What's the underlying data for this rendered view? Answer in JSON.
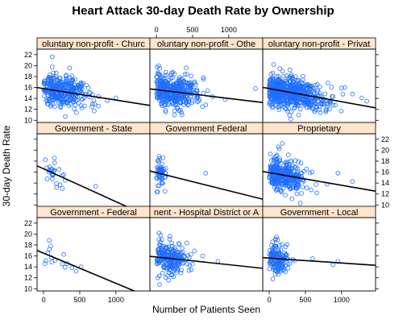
{
  "chart_data": {
    "type": "scatter",
    "title": "Heart Attack 30-day Death Rate by Ownership",
    "xlabel": "Number of Patients Seen",
    "ylabel": "30-day Death Rate",
    "xlim": [
      -90,
      1470
    ],
    "ylim": [
      9.6,
      23
    ],
    "x_ticks": [
      0,
      500,
      1000
    ],
    "y_ticks": [
      10,
      12,
      14,
      16,
      18,
      20,
      22
    ],
    "grid": false,
    "layout": {
      "columns": 3,
      "rows": 3
    },
    "colors": {
      "points": "#1f6fff",
      "strip": "#ffe5cc",
      "line": "#000000",
      "frame": "#000000"
    },
    "panels": [
      {
        "name": "Voluntary non-profit - Church",
        "label": "oluntary non-profit - Churc",
        "row": 1,
        "col": 1,
        "fit": {
          "intercept": 15.8,
          "slope": -0.0021
        },
        "points": {
          "count": 340,
          "x_mean": 250,
          "x_sd": 170,
          "x_max": 1200,
          "y_sd": 1.35,
          "seed": 11,
          "extra": [
            [
              120,
              21.6
            ],
            [
              1000,
              14.1
            ],
            [
              880,
              13.6
            ],
            [
              760,
              12.6
            ],
            [
              700,
              11.7
            ],
            [
              300,
              10.7
            ],
            [
              620,
              15.9
            ]
          ]
        }
      },
      {
        "name": "Voluntary non-profit - Other",
        "label": "oluntary non-profit - Othe",
        "row": 1,
        "col": 2,
        "fit": {
          "intercept": 15.6,
          "slope": -0.0016
        },
        "points": {
          "count": 420,
          "x_mean": 220,
          "x_sd": 170,
          "x_max": 1450,
          "y_sd": 1.4,
          "seed": 23,
          "extra": [
            [
              1370,
              15.8
            ],
            [
              650,
              17.8
            ],
            [
              30,
              20.0
            ],
            [
              250,
              11.0
            ],
            [
              950,
              13.8
            ]
          ]
        }
      },
      {
        "name": "Voluntary non-profit - Private",
        "label": "oluntary non-profit - Privat",
        "row": 1,
        "col": 3,
        "fit": {
          "intercept": 15.8,
          "slope": -0.0024
        },
        "points": {
          "count": 640,
          "x_mean": 300,
          "x_sd": 240,
          "x_max": 1450,
          "y_sd": 1.45,
          "seed": 37,
          "extra": [
            [
              1280,
              14.1
            ],
            [
              1350,
              13.5
            ],
            [
              1150,
              14.8
            ],
            [
              60,
              20.2
            ],
            [
              300,
              10.2
            ],
            [
              1000,
              15.9
            ]
          ]
        }
      },
      {
        "name": "Government - State",
        "label": "Government - State",
        "row": 2,
        "col": 1,
        "fit": {
          "intercept": 16.6,
          "slope": -0.006
        },
        "points": {
          "count": 22,
          "x_mean": 160,
          "x_sd": 70,
          "x_max": 450,
          "y_sd": 1.2,
          "seed": 41,
          "extra": [
            [
              150,
              18.6
            ],
            [
              720,
              13.4
            ],
            [
              180,
              13.2
            ],
            [
              300,
              14.5
            ],
            [
              260,
              13.0
            ]
          ]
        }
      },
      {
        "name": "Government Federal",
        "label": "Government Federal",
        "row": 2,
        "col": 2,
        "fit": {
          "intercept": 15.9,
          "slope": -0.0033
        },
        "points": {
          "count": 55,
          "x_mean": 55,
          "x_sd": 35,
          "x_max": 200,
          "y_sd": 1.3,
          "seed": 53,
          "extra": [
            [
              680,
              15.8
            ],
            [
              120,
              12.5
            ]
          ]
        }
      },
      {
        "name": "Proprietary",
        "label": "Proprietary",
        "row": 2,
        "col": 3,
        "fit": {
          "intercept": 15.9,
          "slope": -0.0023
        },
        "points": {
          "count": 330,
          "x_mean": 200,
          "x_sd": 140,
          "x_max": 1000,
          "y_sd": 1.4,
          "seed": 67,
          "extra": [
            [
              1150,
              14.3
            ],
            [
              950,
              15.8
            ],
            [
              520,
              13.1
            ],
            [
              430,
              10.3
            ],
            [
              130,
              20.6
            ],
            [
              800,
              13.8
            ]
          ]
        }
      },
      {
        "name": "Government - Federal",
        "label": "Government - Federal",
        "row": 3,
        "col": 1,
        "fit": {
          "intercept": 16.5,
          "slope": -0.0055
        },
        "points": {
          "count": 10,
          "x_mean": 200,
          "x_sd": 150,
          "x_max": 600,
          "y_sd": 1.2,
          "seed": 71,
          "extra": [
            [
              80,
              17.2
            ],
            [
              450,
              13.2
            ],
            [
              330,
              14.6
            ],
            [
              520,
              14.0
            ],
            [
              160,
              15.2
            ],
            [
              60,
              16.5
            ]
          ]
        }
      },
      {
        "name": "Government - Hospital District or Authority",
        "label": "nent - Hospital District or A",
        "row": 3,
        "col": 2,
        "fit": {
          "intercept": 15.8,
          "slope": -0.0014
        },
        "points": {
          "count": 230,
          "x_mean": 200,
          "x_sd": 140,
          "x_max": 950,
          "y_sd": 1.4,
          "seed": 83,
          "extra": [
            [
              850,
              15.0
            ],
            [
              640,
              16.0
            ],
            [
              500,
              14.5
            ],
            [
              20,
              12.0
            ],
            [
              60,
              19.8
            ]
          ]
        }
      },
      {
        "name": "Government - Local",
        "label": "Government - Local",
        "row": 3,
        "col": 3,
        "fit": {
          "intercept": 15.6,
          "slope": -0.0009
        },
        "points": {
          "count": 150,
          "x_mean": 110,
          "x_sd": 80,
          "x_max": 700,
          "y_sd": 1.4,
          "seed": 97,
          "extra": [
            [
              950,
              15.0
            ],
            [
              600,
              15.5
            ],
            [
              880,
              14.4
            ],
            [
              100,
              19.5
            ],
            [
              50,
              11.8
            ]
          ]
        }
      }
    ]
  }
}
